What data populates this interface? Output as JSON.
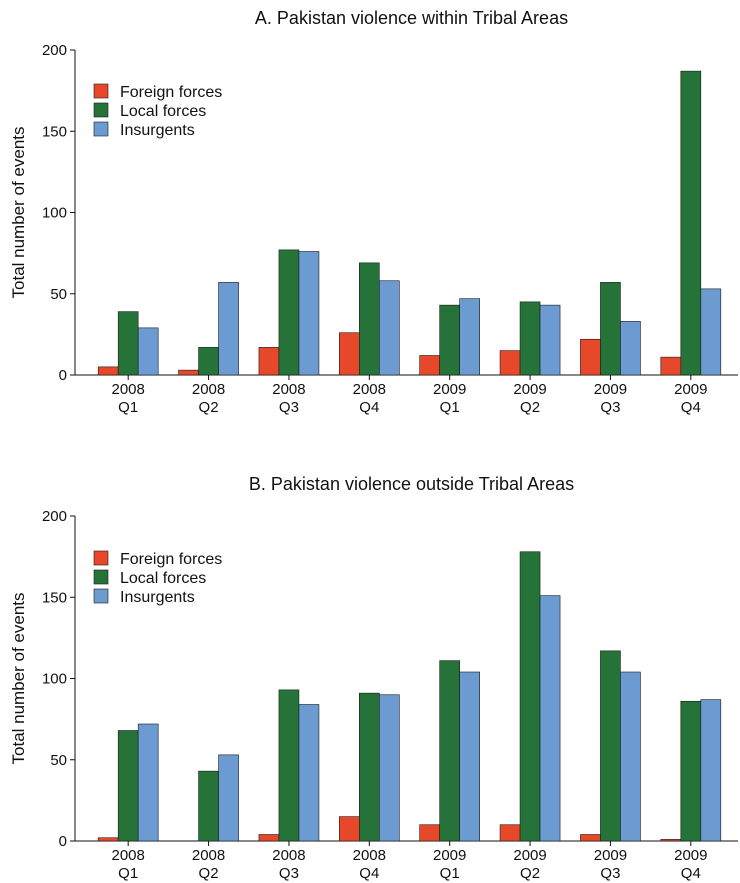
{
  "chart_data": [
    {
      "type": "bar",
      "title": "A. Pakistan violence within Tribal Areas",
      "ylabel": "Total number of events",
      "xlabel": "",
      "ylim": [
        0,
        200
      ],
      "yticks": [
        0,
        50,
        100,
        150,
        200
      ],
      "grid": false,
      "legend_position": "top-left",
      "categories": [
        {
          "year": "2008",
          "quarter": "Q1"
        },
        {
          "year": "2008",
          "quarter": "Q2"
        },
        {
          "year": "2008",
          "quarter": "Q3"
        },
        {
          "year": "2008",
          "quarter": "Q4"
        },
        {
          "year": "2009",
          "quarter": "Q1"
        },
        {
          "year": "2009",
          "quarter": "Q2"
        },
        {
          "year": "2009",
          "quarter": "Q3"
        },
        {
          "year": "2009",
          "quarter": "Q4"
        }
      ],
      "series": [
        {
          "name": "Foreign forces",
          "color": "#e8482a",
          "values": [
            5,
            3,
            17,
            26,
            12,
            15,
            22,
            11
          ]
        },
        {
          "name": "Local forces",
          "color": "#26733a",
          "values": [
            39,
            17,
            77,
            69,
            43,
            45,
            57,
            187
          ]
        },
        {
          "name": "Insurgents",
          "color": "#6b9bd1",
          "values": [
            29,
            57,
            76,
            58,
            47,
            43,
            33,
            53
          ]
        }
      ]
    },
    {
      "type": "bar",
      "title": "B. Pakistan violence outside Tribal Areas",
      "ylabel": "Total number of events",
      "xlabel": "",
      "ylim": [
        0,
        200
      ],
      "yticks": [
        0,
        50,
        100,
        150,
        200
      ],
      "grid": false,
      "legend_position": "top-left",
      "categories": [
        {
          "year": "2008",
          "quarter": "Q1"
        },
        {
          "year": "2008",
          "quarter": "Q2"
        },
        {
          "year": "2008",
          "quarter": "Q3"
        },
        {
          "year": "2008",
          "quarter": "Q4"
        },
        {
          "year": "2009",
          "quarter": "Q1"
        },
        {
          "year": "2009",
          "quarter": "Q2"
        },
        {
          "year": "2009",
          "quarter": "Q3"
        },
        {
          "year": "2009",
          "quarter": "Q4"
        }
      ],
      "series": [
        {
          "name": "Foreign forces",
          "color": "#e8482a",
          "values": [
            2,
            0,
            4,
            15,
            10,
            10,
            4,
            1
          ]
        },
        {
          "name": "Local forces",
          "color": "#26733a",
          "values": [
            68,
            43,
            93,
            91,
            111,
            178,
            117,
            86
          ]
        },
        {
          "name": "Insurgents",
          "color": "#6b9bd1",
          "values": [
            72,
            53,
            84,
            90,
            104,
            151,
            104,
            87
          ]
        }
      ]
    }
  ]
}
